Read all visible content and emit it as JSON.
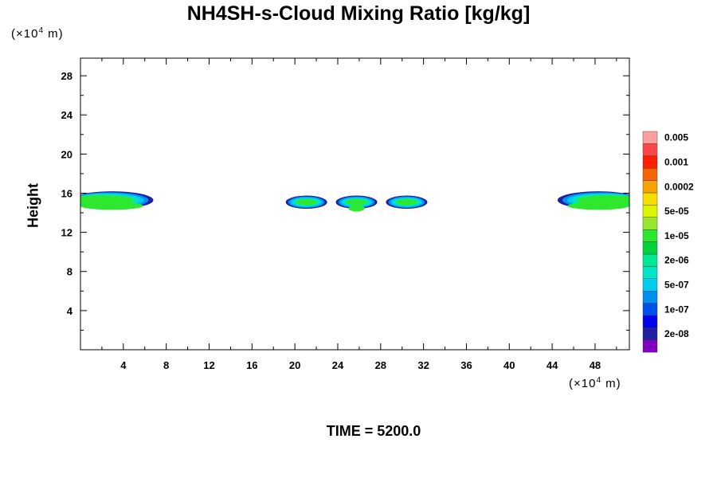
{
  "title": "NH4SH-s-Cloud Mixing Ratio [kg/kg]",
  "y_unit": {
    "prefix": "(×10",
    "exp": "4",
    "suffix": " m)"
  },
  "x_unit": {
    "prefix": "(×10",
    "exp": "4",
    "suffix": " m)"
  },
  "ylabel": "Height",
  "time_label": "TIME = 5200.0",
  "chart_data": {
    "type": "heatmap",
    "title": "NH4SH-s-Cloud Mixing Ratio [kg/kg]",
    "xlabel": "",
    "ylabel": "Height",
    "xlim": [
      0,
      51.2
    ],
    "ylim": [
      0,
      29.8
    ],
    "x_ticks": [
      4,
      8,
      12,
      16,
      20,
      24,
      28,
      32,
      36,
      40,
      44,
      48
    ],
    "y_ticks": [
      4,
      8,
      12,
      16,
      20,
      24,
      28
    ],
    "colorbar": {
      "colors": [
        "#7f00bf",
        "#1f1fa0",
        "#0000ee",
        "#0050ee",
        "#0090f0",
        "#00ccee",
        "#00e5c8",
        "#00e896",
        "#00d23c",
        "#2ee830",
        "#96e62d",
        "#dcf500",
        "#f5dd00",
        "#f5a300",
        "#f56400",
        "#ff1e00",
        "#ff4646",
        "#ff9e9e"
      ],
      "labels": [
        "2e-08",
        "1e-07",
        "5e-07",
        "2e-06",
        "1e-05",
        "5e-05",
        "0.0002",
        "0.001",
        "0.005"
      ]
    },
    "clouds": [
      {
        "x_range": [
          0,
          6.5
        ],
        "y_range": [
          14.3,
          16.1
        ],
        "core_max": "1e-05"
      },
      {
        "x_range": [
          19.6,
          31.9
        ],
        "y_range": [
          14.2,
          15.8
        ],
        "core_max": "1e-05"
      },
      {
        "x_range": [
          44.8,
          51.2
        ],
        "y_range": [
          14.3,
          16.1
        ],
        "core_max": "1e-05"
      }
    ]
  }
}
